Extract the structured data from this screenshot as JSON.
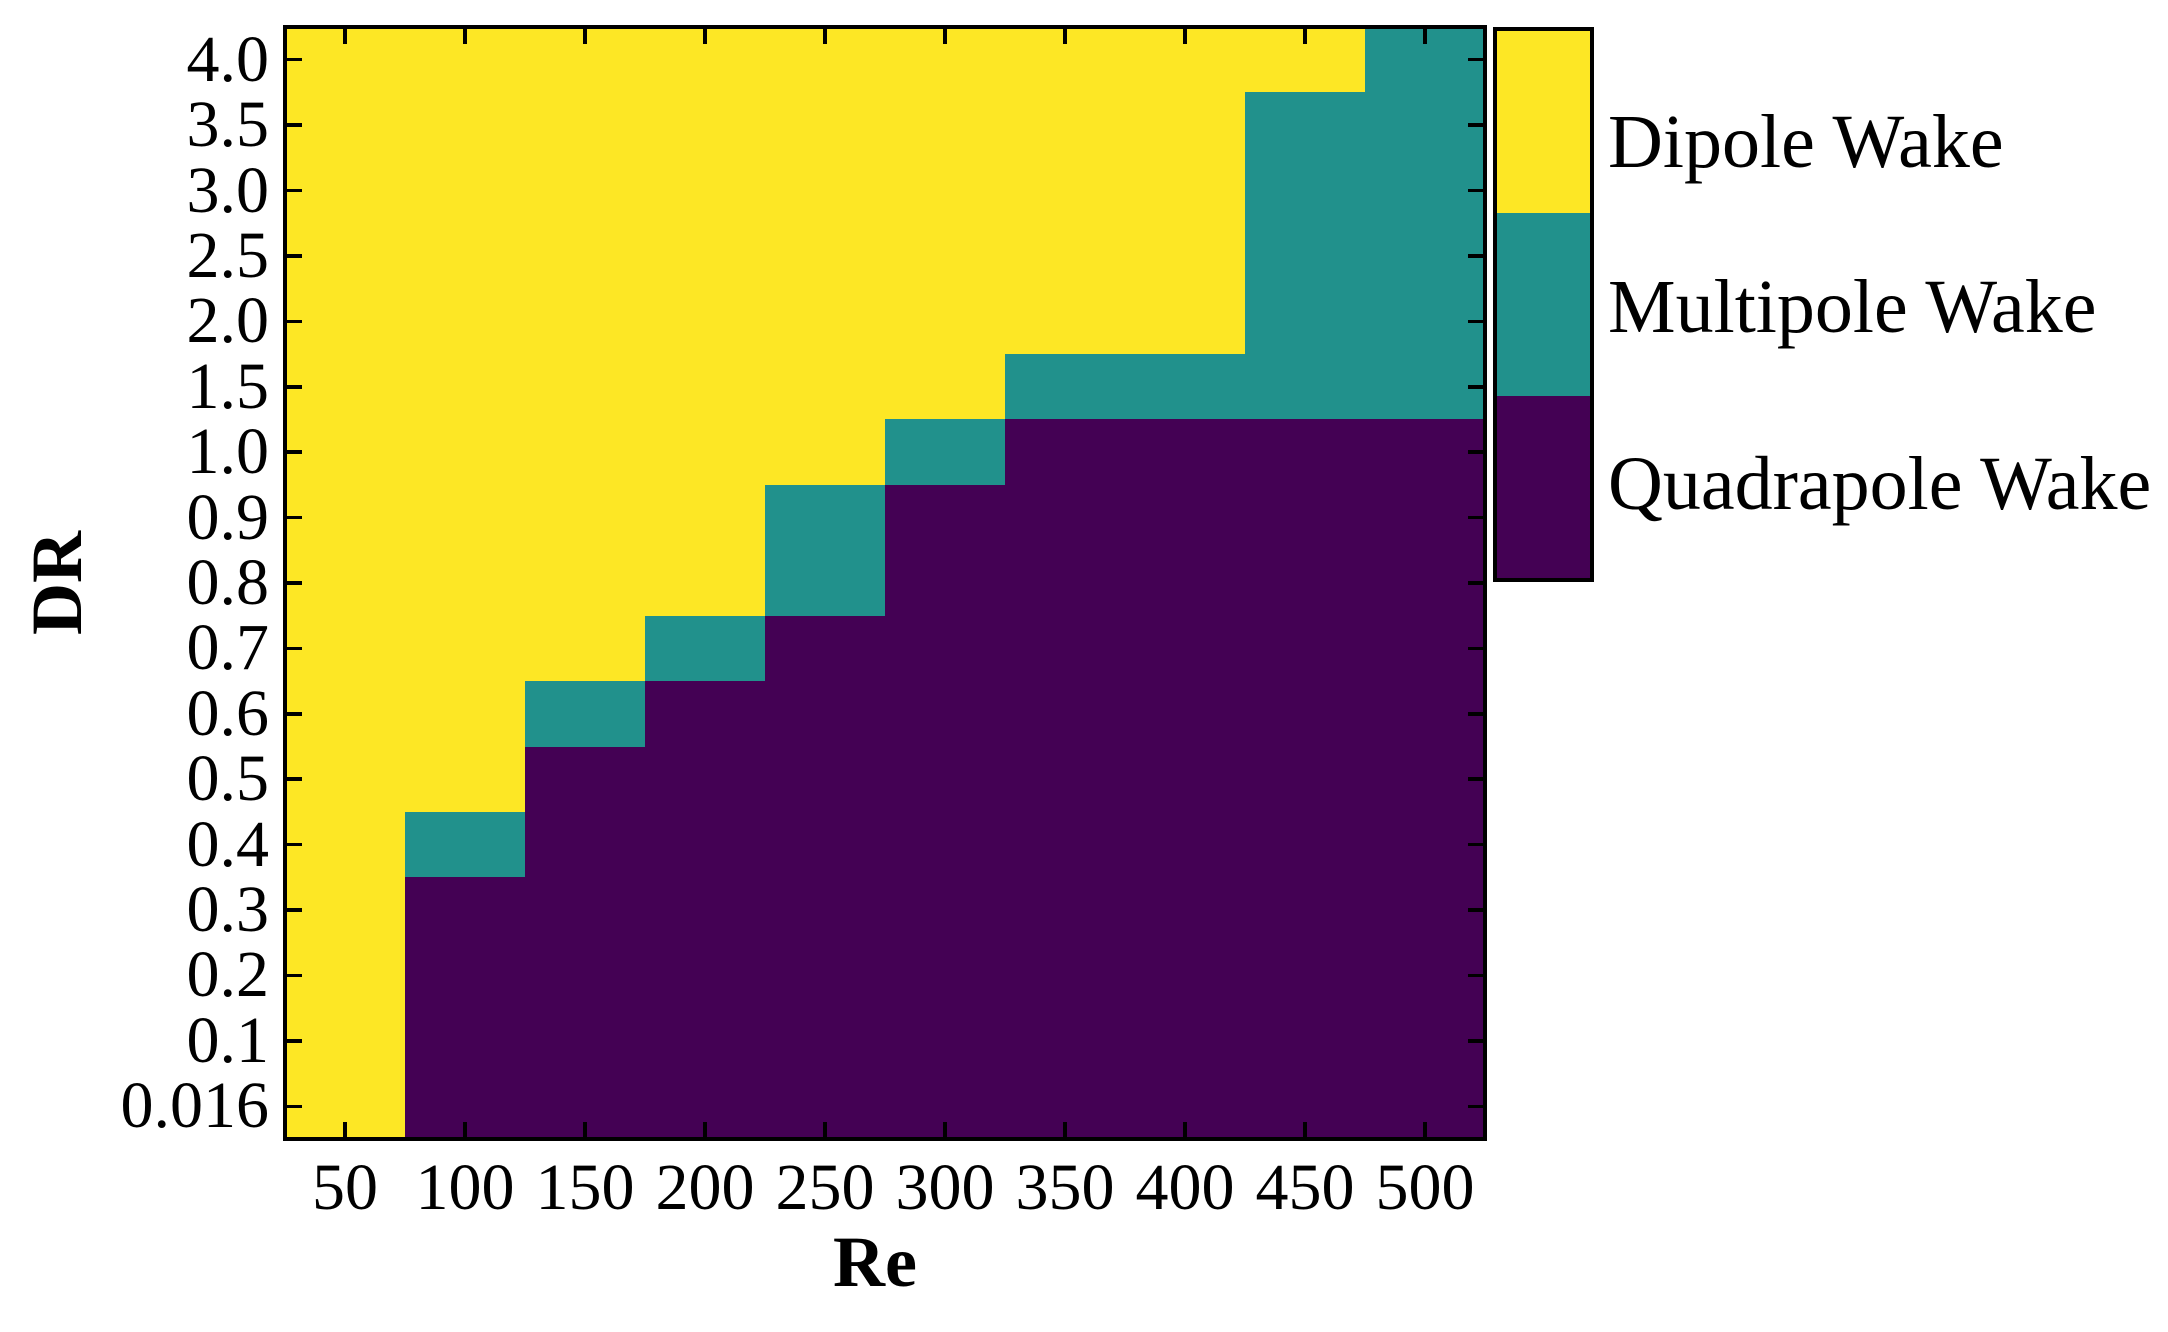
{
  "chart_data": {
    "type": "heatmap",
    "title": "",
    "xlabel": "Re",
    "ylabel": "DR",
    "x_values": [
      50,
      100,
      150,
      200,
      250,
      300,
      350,
      400,
      450,
      500
    ],
    "x_tick_labels": [
      "50",
      "100",
      "150",
      "200",
      "250",
      "300",
      "350",
      "400",
      "450",
      "500"
    ],
    "dr_values_top_to_bottom": [
      4.0,
      3.5,
      3.0,
      2.5,
      2.0,
      1.5,
      1.0,
      0.9,
      0.8,
      0.7,
      0.6,
      0.5,
      0.4,
      0.3,
      0.2,
      0.1,
      0.016
    ],
    "y_tick_labels_top_to_bottom": [
      "4.0",
      "3.5",
      "3.0",
      "2.5",
      "2.0",
      "1.5",
      "1.0",
      "0.9",
      "0.8",
      "0.7",
      "0.6",
      "0.5",
      "0.4",
      "0.3",
      "0.2",
      "0.1",
      "0.016"
    ],
    "cell_codes_rows_top_to_bottom": [
      "DDDDDDDDDM",
      "DDDDDDDDMM",
      "DDDDDDDDMM",
      "DDDDDDDDMM",
      "DDDDDDDDMM",
      "DDDDDDMMMM",
      "DDDDDMQQQQ",
      "DDDDMQQQQQ",
      "DDDDMQQQQQ",
      "DDDMQQQQQQ",
      "DDMQQQQQQQ",
      "DDQQQQQQQQ",
      "DMQQQQQQQQ",
      "DQQQQQQQQQ",
      "DQQQQQQQQQ",
      "DQQQQQQQQQ",
      "DQQQQQQQQQ"
    ],
    "regime_legend": [
      {
        "code": "D",
        "label": "Dipole Wake",
        "color": "#FDE725"
      },
      {
        "code": "M",
        "label": "Multipole Wake",
        "color": "#21918C"
      },
      {
        "code": "Q",
        "label": "Quadrapole Wake",
        "color": "#440154"
      }
    ],
    "grid": "off",
    "legend_position": "right-colorbar",
    "tick_direction": "in",
    "spine_color": "#000000",
    "text_color": "#000000",
    "background_color": "#ffffff"
  }
}
